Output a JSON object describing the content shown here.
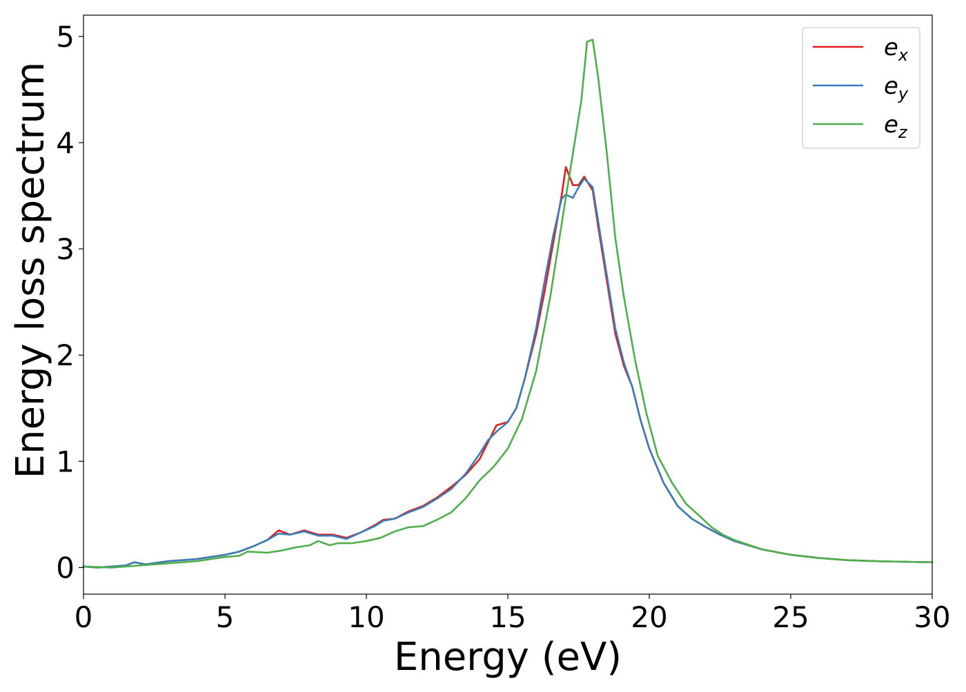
{
  "chart_data": {
    "type": "line",
    "title": "",
    "xlabel": "Energy (eV)",
    "ylabel": "Energy loss spectrum",
    "xlim": [
      0,
      30
    ],
    "ylim": [
      -0.25,
      5.2
    ],
    "xticks": [
      0,
      5,
      10,
      15,
      20,
      25,
      30
    ],
    "yticks": [
      0,
      1,
      2,
      3,
      4,
      5
    ],
    "grid": false,
    "legend_position": "top-right",
    "series": [
      {
        "name": "e",
        "subscript": "x",
        "color": "#e41a1c",
        "points": [
          [
            0,
            0.01
          ],
          [
            0.5,
            0.0
          ],
          [
            1.0,
            0.01
          ],
          [
            1.5,
            0.02
          ],
          [
            1.8,
            0.05
          ],
          [
            2.2,
            0.03
          ],
          [
            3.0,
            0.06
          ],
          [
            3.5,
            0.07
          ],
          [
            4.0,
            0.08
          ],
          [
            4.5,
            0.1
          ],
          [
            5.0,
            0.12
          ],
          [
            5.5,
            0.15
          ],
          [
            6.0,
            0.2
          ],
          [
            6.5,
            0.26
          ],
          [
            6.9,
            0.35
          ],
          [
            7.3,
            0.31
          ],
          [
            7.8,
            0.35
          ],
          [
            8.3,
            0.31
          ],
          [
            8.8,
            0.31
          ],
          [
            9.3,
            0.28
          ],
          [
            9.8,
            0.33
          ],
          [
            10.3,
            0.4
          ],
          [
            10.6,
            0.45
          ],
          [
            11.0,
            0.46
          ],
          [
            11.5,
            0.53
          ],
          [
            12.0,
            0.58
          ],
          [
            12.5,
            0.66
          ],
          [
            13.0,
            0.76
          ],
          [
            13.5,
            0.87
          ],
          [
            14.0,
            1.02
          ],
          [
            14.3,
            1.18
          ],
          [
            14.6,
            1.34
          ],
          [
            15.0,
            1.37
          ],
          [
            15.3,
            1.5
          ],
          [
            15.6,
            1.78
          ],
          [
            16.0,
            2.2
          ],
          [
            16.3,
            2.6
          ],
          [
            16.6,
            3.05
          ],
          [
            16.9,
            3.5
          ],
          [
            17.05,
            3.77
          ],
          [
            17.3,
            3.6
          ],
          [
            17.5,
            3.6
          ],
          [
            17.7,
            3.68
          ],
          [
            18.0,
            3.55
          ],
          [
            18.2,
            3.2
          ],
          [
            18.5,
            2.7
          ],
          [
            18.8,
            2.2
          ],
          [
            19.1,
            1.9
          ],
          [
            19.4,
            1.7
          ],
          [
            19.7,
            1.38
          ],
          [
            20.0,
            1.12
          ],
          [
            20.5,
            0.8
          ],
          [
            21.0,
            0.58
          ],
          [
            21.5,
            0.46
          ],
          [
            22.0,
            0.38
          ],
          [
            22.5,
            0.31
          ],
          [
            23.0,
            0.25
          ],
          [
            24.0,
            0.17
          ],
          [
            25.0,
            0.12
          ],
          [
            26.0,
            0.09
          ],
          [
            27.0,
            0.07
          ],
          [
            28.0,
            0.06
          ],
          [
            29.0,
            0.055
          ],
          [
            30.0,
            0.05
          ]
        ]
      },
      {
        "name": "e",
        "subscript": "y",
        "color": "#377eb8",
        "points": [
          [
            0,
            0.01
          ],
          [
            0.5,
            0.0
          ],
          [
            1.0,
            0.01
          ],
          [
            1.5,
            0.02
          ],
          [
            1.8,
            0.05
          ],
          [
            2.2,
            0.03
          ],
          [
            3.0,
            0.06
          ],
          [
            3.5,
            0.07
          ],
          [
            4.0,
            0.08
          ],
          [
            4.5,
            0.1
          ],
          [
            5.0,
            0.12
          ],
          [
            5.5,
            0.15
          ],
          [
            6.0,
            0.2
          ],
          [
            6.5,
            0.26
          ],
          [
            6.9,
            0.32
          ],
          [
            7.3,
            0.31
          ],
          [
            7.8,
            0.34
          ],
          [
            8.3,
            0.3
          ],
          [
            8.8,
            0.3
          ],
          [
            9.3,
            0.27
          ],
          [
            9.8,
            0.33
          ],
          [
            10.3,
            0.39
          ],
          [
            10.6,
            0.44
          ],
          [
            11.0,
            0.46
          ],
          [
            11.5,
            0.52
          ],
          [
            12.0,
            0.57
          ],
          [
            12.5,
            0.65
          ],
          [
            13.0,
            0.74
          ],
          [
            13.5,
            0.88
          ],
          [
            14.0,
            1.07
          ],
          [
            14.3,
            1.2
          ],
          [
            14.6,
            1.28
          ],
          [
            15.0,
            1.37
          ],
          [
            15.3,
            1.5
          ],
          [
            15.6,
            1.78
          ],
          [
            16.0,
            2.25
          ],
          [
            16.3,
            2.7
          ],
          [
            16.6,
            3.12
          ],
          [
            16.9,
            3.47
          ],
          [
            17.05,
            3.51
          ],
          [
            17.3,
            3.48
          ],
          [
            17.5,
            3.58
          ],
          [
            17.7,
            3.66
          ],
          [
            18.0,
            3.58
          ],
          [
            18.2,
            3.25
          ],
          [
            18.5,
            2.75
          ],
          [
            18.8,
            2.25
          ],
          [
            19.1,
            1.93
          ],
          [
            19.4,
            1.7
          ],
          [
            19.7,
            1.38
          ],
          [
            20.0,
            1.12
          ],
          [
            20.5,
            0.8
          ],
          [
            21.0,
            0.58
          ],
          [
            21.5,
            0.46
          ],
          [
            22.0,
            0.38
          ],
          [
            22.5,
            0.31
          ],
          [
            23.0,
            0.25
          ],
          [
            24.0,
            0.17
          ],
          [
            25.0,
            0.12
          ],
          [
            26.0,
            0.09
          ],
          [
            27.0,
            0.07
          ],
          [
            28.0,
            0.06
          ],
          [
            29.0,
            0.055
          ],
          [
            30.0,
            0.05
          ]
        ]
      },
      {
        "name": "e",
        "subscript": "z",
        "color": "#4daf4a",
        "points": [
          [
            0,
            0.01
          ],
          [
            1.0,
            0.0
          ],
          [
            2.0,
            0.02
          ],
          [
            3.0,
            0.04
          ],
          [
            4.0,
            0.06
          ],
          [
            5.0,
            0.1
          ],
          [
            5.5,
            0.11
          ],
          [
            5.8,
            0.15
          ],
          [
            6.5,
            0.14
          ],
          [
            7.0,
            0.16
          ],
          [
            7.5,
            0.19
          ],
          [
            8.0,
            0.21
          ],
          [
            8.3,
            0.25
          ],
          [
            8.7,
            0.21
          ],
          [
            9.0,
            0.23
          ],
          [
            9.5,
            0.23
          ],
          [
            10.0,
            0.25
          ],
          [
            10.5,
            0.28
          ],
          [
            11.0,
            0.34
          ],
          [
            11.5,
            0.38
          ],
          [
            12.0,
            0.39
          ],
          [
            12.5,
            0.45
          ],
          [
            13.0,
            0.52
          ],
          [
            13.5,
            0.65
          ],
          [
            14.0,
            0.82
          ],
          [
            14.5,
            0.95
          ],
          [
            15.0,
            1.12
          ],
          [
            15.5,
            1.4
          ],
          [
            16.0,
            1.85
          ],
          [
            16.5,
            2.55
          ],
          [
            17.0,
            3.4
          ],
          [
            17.3,
            3.9
          ],
          [
            17.6,
            4.4
          ],
          [
            17.8,
            4.95
          ],
          [
            18.0,
            4.97
          ],
          [
            18.2,
            4.6
          ],
          [
            18.5,
            3.9
          ],
          [
            18.8,
            3.1
          ],
          [
            19.1,
            2.55
          ],
          [
            19.5,
            1.95
          ],
          [
            19.9,
            1.45
          ],
          [
            20.3,
            1.05
          ],
          [
            20.8,
            0.8
          ],
          [
            21.3,
            0.6
          ],
          [
            21.8,
            0.48
          ],
          [
            22.2,
            0.38
          ],
          [
            22.6,
            0.31
          ],
          [
            23.0,
            0.26
          ],
          [
            24.0,
            0.17
          ],
          [
            25.0,
            0.12
          ],
          [
            26.0,
            0.09
          ],
          [
            27.0,
            0.07
          ],
          [
            28.0,
            0.06
          ],
          [
            29.0,
            0.055
          ],
          [
            30.0,
            0.05
          ]
        ]
      }
    ]
  }
}
